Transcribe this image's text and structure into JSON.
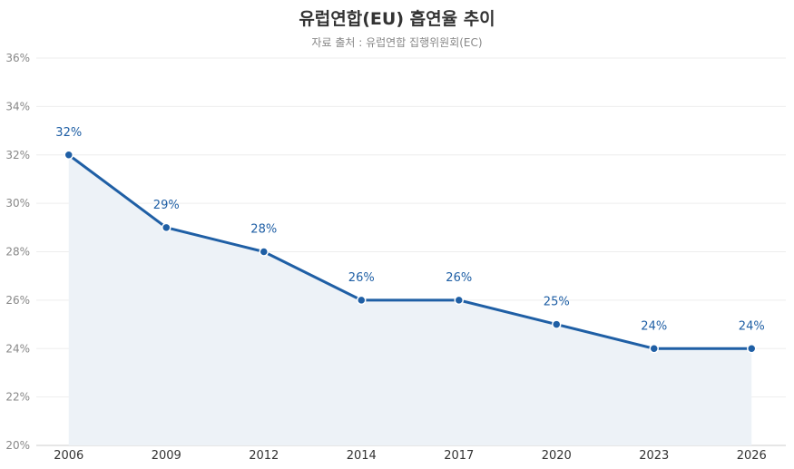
{
  "chart_data": {
    "type": "line",
    "title": "유럽연합(EU) 흡연율 추이",
    "subtitle": "자료 출처 : 유럽연합 집행위원회(EC)",
    "categories": [
      "2006",
      "2009",
      "2012",
      "2014",
      "2017",
      "2020",
      "2023",
      "2026"
    ],
    "series": [
      {
        "name": "흡연율",
        "values": [
          32,
          29,
          28,
          26,
          26,
          25,
          24,
          24
        ],
        "labels": [
          "32%",
          "29%",
          "28%",
          "26%",
          "26%",
          "25%",
          "24%",
          "24%"
        ]
      }
    ],
    "y_ticks": [
      20,
      22,
      24,
      26,
      28,
      30,
      32,
      34,
      36
    ],
    "y_tick_labels": [
      "20%",
      "22%",
      "24%",
      "26%",
      "28%",
      "30%",
      "32%",
      "34%",
      "36%"
    ],
    "ylim": [
      20,
      36
    ],
    "xlabel": "",
    "ylabel": "",
    "grid": true,
    "colors": {
      "line": "#1f5fa5",
      "area": "#edf2f7",
      "grid": "#eeeeee",
      "axis": "#cccccc"
    }
  }
}
